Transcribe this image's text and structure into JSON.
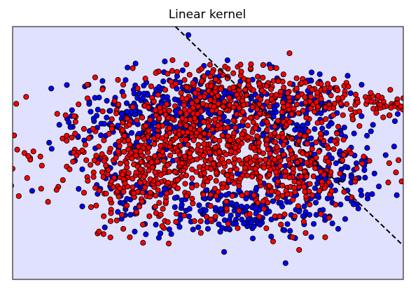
{
  "chart_data": {
    "type": "scatter",
    "title": "Linear kernel",
    "xlabel": "",
    "ylabel": "",
    "show_ticks": false,
    "grid": false,
    "xlim": [
      -3.0,
      3.0
    ],
    "ylim": [
      -3.0,
      3.0
    ],
    "background_color": "#e0e0ff",
    "decision_boundary": {
      "style": "dashed",
      "color": "#000000",
      "x": [
        -0.5,
        3.0
      ],
      "y": [
        3.0,
        -2.2
      ]
    },
    "series": [
      {
        "color": "#0000ff",
        "points": [
          [
            -0.3,
            2.8
          ],
          [
            0.9,
            1.4
          ],
          [
            1.9,
            0.7
          ],
          [
            -2.1,
            0.0
          ],
          [
            -2.7,
            -0.9
          ],
          [
            2.4,
            -0.3
          ],
          [
            2.9,
            -1.0
          ],
          [
            2.0,
            -1.8
          ],
          [
            -2.4,
            0.1
          ],
          [
            -2.0,
            0.4
          ],
          [
            -1.9,
            0.3
          ],
          [
            -1.5,
            0.7
          ],
          [
            -1.0,
            1.3
          ],
          [
            -0.5,
            1.7
          ],
          [
            0.0,
            1.9
          ],
          [
            0.5,
            1.7
          ],
          [
            1.2,
            1.0
          ],
          [
            1.6,
            0.2
          ],
          [
            1.8,
            -0.5
          ],
          [
            1.5,
            -1.4
          ],
          [
            0.8,
            -1.7
          ],
          [
            0.0,
            -1.8
          ],
          [
            -0.8,
            -1.7
          ],
          [
            -1.3,
            -1.2
          ],
          [
            -1.5,
            1.0
          ],
          [
            1.0,
            0.4
          ],
          [
            2.2,
            -0.7
          ],
          [
            -1.7,
            0.6
          ],
          [
            0.3,
            2.2
          ],
          [
            1.3,
            1.3
          ]
        ],
        "clusters": [
          {
            "cx": 0.0,
            "cy": 1.05,
            "sx": 1.05,
            "sy": 0.45,
            "n": 300
          },
          {
            "cx": -0.85,
            "cy": 0.65,
            "sx": 0.6,
            "sy": 0.45,
            "n": 130
          },
          {
            "cx": 1.45,
            "cy": 0.2,
            "sx": 0.45,
            "sy": 0.7,
            "n": 160
          },
          {
            "cx": 0.4,
            "cy": -1.35,
            "sx": 0.8,
            "sy": 0.35,
            "n": 200
          },
          {
            "cx": 1.95,
            "cy": -0.5,
            "sx": 0.35,
            "sy": 0.45,
            "n": 70
          },
          {
            "cx": -1.2,
            "cy": -0.9,
            "sx": 0.35,
            "sy": 0.35,
            "n": 40
          }
        ]
      },
      {
        "color": "#ff0000",
        "points": [
          [
            1.4,
            -2.3
          ],
          [
            1.0,
            -2.1
          ],
          [
            1.3,
            -2.0
          ],
          [
            1.5,
            -1.9
          ],
          [
            1.8,
            -2.0
          ],
          [
            -1.2,
            -2.0
          ],
          [
            -1.3,
            -1.8
          ],
          [
            -1.0,
            -1.7
          ],
          [
            -1.6,
            -1.5
          ],
          [
            -1.4,
            -1.6
          ],
          [
            -0.8,
            1.9
          ],
          [
            0.5,
            2.1
          ],
          [
            2.3,
            1.2
          ],
          [
            3.0,
            1.3
          ],
          [
            3.3,
            0.9
          ],
          [
            3.1,
            1.1
          ],
          [
            2.8,
            1.5
          ],
          [
            2.0,
            1.3
          ],
          [
            1.6,
            0.1
          ],
          [
            -0.1,
            2.0
          ],
          [
            -0.9,
            -1.5
          ],
          [
            -1.5,
            -1.1
          ],
          [
            1.1,
            -1.5
          ],
          [
            1.6,
            -1.0
          ],
          [
            1.9,
            -0.9
          ]
        ],
        "clusters": [
          {
            "cx": -0.1,
            "cy": 0.05,
            "sx": 1.1,
            "sy": 0.7,
            "n": 800
          },
          {
            "cx": -1.1,
            "cy": -0.6,
            "sx": 0.35,
            "sy": 0.6,
            "n": 90
          },
          {
            "cx": 1.25,
            "cy": -0.6,
            "sx": 0.35,
            "sy": 0.55,
            "n": 90
          },
          {
            "cx": 0.3,
            "cy": 1.55,
            "sx": 0.6,
            "sy": 0.3,
            "n": 150
          },
          {
            "cx": 1.7,
            "cy": 1.3,
            "sx": 0.45,
            "sy": 0.22,
            "n": 70
          },
          {
            "cx": 2.65,
            "cy": 1.15,
            "sx": 0.25,
            "sy": 0.12,
            "n": 35
          }
        ]
      }
    ]
  }
}
